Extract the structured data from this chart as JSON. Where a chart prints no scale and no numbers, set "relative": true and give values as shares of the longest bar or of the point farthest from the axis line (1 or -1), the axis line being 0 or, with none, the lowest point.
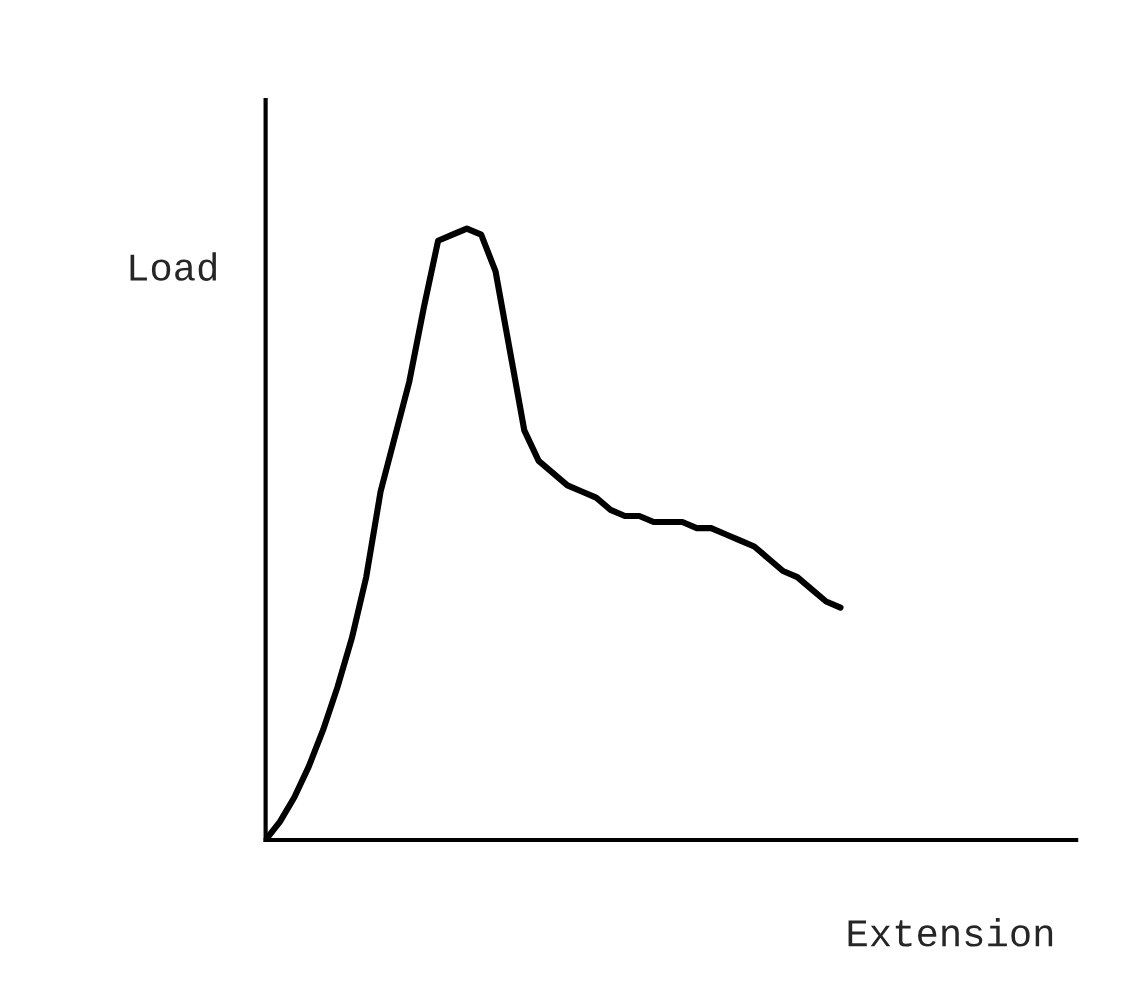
{
  "chart_data": {
    "type": "line",
    "xlabel": "Extension",
    "ylabel": "Load",
    "relative": true,
    "categories": [
      null,
      null,
      null,
      null,
      null,
      null,
      null,
      null,
      null,
      null,
      null,
      null,
      null,
      null,
      null,
      null,
      null,
      null,
      null,
      null,
      null,
      null,
      null,
      null,
      null,
      null,
      null,
      null,
      null,
      null,
      null,
      null,
      null,
      null,
      null,
      null,
      null,
      null,
      null,
      null,
      null
    ],
    "series": [
      {
        "color": "#000000",
        "values": [
          0,
          0.03,
          0.07,
          0.12,
          0.18,
          0.25,
          0.33,
          0.43,
          0.57,
          0.66,
          0.75,
          0.87,
          0.98,
          0.99,
          1,
          0.99,
          0.93,
          0.8,
          0.67,
          0.62,
          0.6,
          0.58,
          0.57,
          0.56,
          0.54,
          0.53,
          0.53,
          0.52,
          0.52,
          0.52,
          0.51,
          0.51,
          0.5,
          0.49,
          0.48,
          0.46,
          0.44,
          0.43,
          0.41,
          0.39,
          0.38
        ]
      }
    ],
    "marker": "none",
    "line_style": "solid"
  }
}
